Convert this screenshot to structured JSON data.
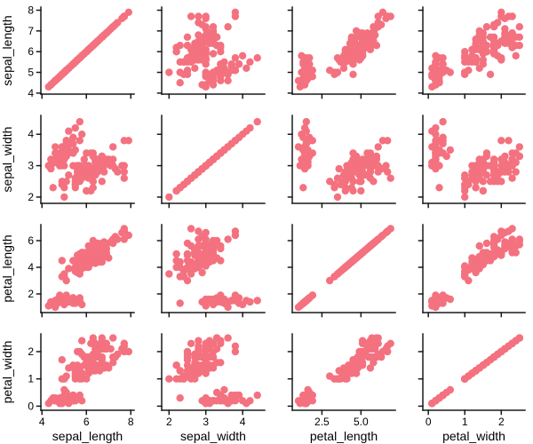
{
  "figure": {
    "background": "#ffffff"
  },
  "chart_data": {
    "type": "scatter",
    "subtype": "pairplot-scatter-matrix",
    "title": "",
    "legend": "none",
    "grid": "off",
    "marker_color": "#F4717F",
    "spine_color": "#1a1a1a",
    "variables": [
      "sepal_length",
      "sepal_width",
      "petal_length",
      "petal_width"
    ],
    "axes": {
      "sepal_length": {
        "label": "sepal_length",
        "range": [
          3.95,
          8.15
        ],
        "y_ticks": [
          "4",
          "5",
          "6",
          "7",
          "8"
        ],
        "x_ticks": [
          "4",
          "6",
          "8"
        ]
      },
      "sepal_width": {
        "label": "sepal_width",
        "range": [
          1.8,
          4.6
        ],
        "y_ticks": [
          "2",
          "3",
          "4"
        ],
        "x_ticks": [
          "2",
          "3",
          "4"
        ]
      },
      "petal_length": {
        "label": "petal_length",
        "range": [
          0.6,
          7.2
        ],
        "y_ticks": [
          "2",
          "4",
          "6"
        ],
        "x_ticks": [
          "2.5",
          "5.0"
        ]
      },
      "petal_width": {
        "label": "petal_width",
        "range": [
          -0.15,
          2.65
        ],
        "y_ticks": [
          "0",
          "1",
          "2"
        ],
        "x_ticks": [
          "0",
          "1",
          "2"
        ]
      }
    },
    "data": {
      "sepal_length": [
        5.1,
        4.9,
        4.7,
        4.6,
        5.0,
        5.4,
        4.6,
        5.0,
        4.4,
        4.9,
        5.4,
        4.8,
        4.8,
        4.3,
        5.8,
        5.7,
        5.4,
        5.1,
        5.7,
        5.1,
        5.4,
        5.1,
        4.6,
        5.1,
        4.8,
        5.0,
        5.0,
        5.2,
        5.2,
        4.7,
        4.8,
        5.4,
        5.2,
        5.5,
        4.9,
        5.0,
        5.5,
        4.9,
        4.4,
        5.1,
        5.0,
        4.5,
        4.4,
        5.0,
        5.1,
        4.8,
        5.1,
        4.6,
        5.3,
        5.0,
        7.0,
        6.4,
        6.9,
        5.5,
        6.5,
        5.7,
        6.3,
        4.9,
        6.6,
        5.2,
        5.0,
        5.9,
        6.0,
        6.1,
        5.6,
        6.7,
        5.6,
        5.8,
        6.2,
        5.6,
        5.9,
        6.1,
        6.3,
        6.1,
        6.4,
        6.6,
        6.8,
        6.7,
        6.0,
        5.7,
        5.5,
        5.5,
        5.8,
        6.0,
        5.4,
        6.0,
        6.7,
        6.3,
        5.6,
        5.5,
        5.5,
        6.1,
        5.8,
        5.0,
        5.6,
        5.7,
        5.7,
        6.2,
        5.1,
        5.7,
        6.3,
        5.8,
        7.1,
        6.3,
        6.5,
        7.6,
        4.9,
        7.3,
        6.7,
        7.2,
        6.5,
        6.4,
        6.8,
        5.7,
        5.8,
        6.4,
        6.5,
        7.7,
        7.7,
        6.0,
        6.9,
        5.6,
        7.7,
        6.3,
        6.7,
        7.2,
        6.2,
        6.1,
        6.4,
        7.2,
        7.4,
        7.9,
        6.4,
        6.3,
        6.1,
        7.7,
        6.3,
        6.4,
        6.0,
        6.9,
        6.7,
        6.9,
        5.8,
        6.8,
        6.7,
        6.7,
        6.3,
        6.5,
        6.2,
        5.9
      ],
      "sepal_width": [
        3.5,
        3.0,
        3.2,
        3.1,
        3.6,
        3.9,
        3.4,
        3.4,
        2.9,
        3.1,
        3.7,
        3.4,
        3.0,
        3.0,
        4.0,
        4.4,
        3.9,
        3.5,
        3.8,
        3.8,
        3.4,
        3.7,
        3.6,
        3.3,
        3.4,
        3.0,
        3.4,
        3.5,
        3.4,
        3.2,
        3.1,
        3.4,
        4.1,
        4.2,
        3.1,
        3.2,
        3.5,
        3.6,
        3.0,
        3.4,
        3.5,
        2.3,
        3.2,
        3.5,
        3.8,
        3.0,
        3.8,
        3.2,
        3.7,
        3.3,
        3.2,
        3.2,
        3.1,
        2.3,
        2.8,
        2.8,
        3.3,
        2.4,
        2.9,
        2.7,
        2.0,
        3.0,
        2.2,
        2.9,
        2.9,
        3.1,
        3.0,
        2.7,
        2.2,
        2.5,
        3.2,
        2.8,
        2.5,
        2.8,
        2.9,
        3.0,
        2.8,
        3.0,
        2.9,
        2.6,
        2.4,
        2.4,
        2.7,
        2.7,
        3.0,
        3.4,
        3.1,
        2.3,
        3.0,
        2.5,
        2.6,
        3.0,
        2.6,
        2.3,
        2.7,
        3.0,
        2.9,
        2.9,
        2.5,
        2.8,
        3.3,
        2.7,
        3.0,
        2.9,
        3.0,
        3.0,
        2.5,
        2.9,
        2.5,
        3.6,
        3.2,
        2.7,
        3.0,
        2.5,
        2.8,
        3.2,
        3.0,
        3.8,
        2.6,
        2.2,
        3.2,
        2.8,
        2.8,
        2.7,
        3.3,
        3.2,
        2.8,
        3.0,
        2.8,
        3.0,
        2.8,
        3.8,
        2.8,
        2.8,
        2.6,
        3.0,
        3.4,
        3.1,
        3.0,
        3.1,
        3.1,
        3.1,
        2.7,
        3.2,
        3.3,
        3.0,
        2.5,
        3.0,
        3.4,
        3.0
      ],
      "petal_length": [
        1.4,
        1.4,
        1.3,
        1.5,
        1.4,
        1.7,
        1.4,
        1.5,
        1.4,
        1.5,
        1.5,
        1.6,
        1.4,
        1.1,
        1.2,
        1.5,
        1.3,
        1.4,
        1.7,
        1.5,
        1.7,
        1.5,
        1.0,
        1.7,
        1.9,
        1.6,
        1.6,
        1.5,
        1.4,
        1.6,
        1.6,
        1.5,
        1.5,
        1.4,
        1.5,
        1.2,
        1.3,
        1.4,
        1.3,
        1.5,
        1.3,
        1.3,
        1.3,
        1.6,
        1.9,
        1.4,
        1.6,
        1.4,
        1.5,
        1.4,
        4.7,
        4.5,
        4.9,
        4.0,
        4.6,
        4.5,
        4.7,
        3.3,
        4.6,
        3.9,
        3.5,
        4.2,
        4.0,
        4.7,
        3.6,
        4.4,
        4.5,
        4.1,
        4.5,
        3.9,
        4.8,
        4.0,
        4.9,
        4.7,
        4.3,
        4.4,
        4.8,
        5.0,
        4.5,
        3.5,
        3.8,
        3.7,
        3.9,
        5.1,
        4.5,
        4.5,
        4.7,
        4.4,
        4.1,
        4.0,
        4.4,
        4.6,
        4.0,
        3.3,
        4.2,
        4.2,
        4.2,
        4.3,
        3.0,
        4.1,
        6.0,
        5.1,
        5.9,
        5.6,
        5.8,
        6.6,
        4.5,
        6.3,
        5.8,
        6.1,
        5.1,
        5.3,
        5.5,
        5.0,
        5.1,
        5.3,
        5.5,
        6.7,
        6.9,
        5.0,
        5.7,
        4.9,
        6.7,
        4.9,
        5.7,
        6.0,
        4.8,
        4.9,
        5.6,
        5.8,
        6.1,
        6.4,
        5.6,
        5.1,
        5.6,
        6.1,
        5.6,
        5.5,
        4.8,
        5.4,
        5.6,
        5.1,
        5.1,
        5.9,
        5.7,
        5.2,
        5.0,
        5.2,
        5.4,
        5.1
      ],
      "petal_width": [
        0.2,
        0.2,
        0.2,
        0.2,
        0.2,
        0.4,
        0.3,
        0.2,
        0.2,
        0.1,
        0.2,
        0.2,
        0.1,
        0.1,
        0.2,
        0.4,
        0.4,
        0.3,
        0.3,
        0.3,
        0.2,
        0.4,
        0.2,
        0.5,
        0.2,
        0.2,
        0.4,
        0.2,
        0.2,
        0.2,
        0.2,
        0.4,
        0.1,
        0.2,
        0.2,
        0.2,
        0.2,
        0.1,
        0.2,
        0.2,
        0.3,
        0.3,
        0.2,
        0.6,
        0.4,
        0.3,
        0.2,
        0.2,
        0.2,
        0.2,
        1.4,
        1.5,
        1.5,
        1.3,
        1.5,
        1.3,
        1.6,
        1.0,
        1.3,
        1.4,
        1.0,
        1.5,
        1.0,
        1.4,
        1.3,
        1.4,
        1.5,
        1.0,
        1.5,
        1.1,
        1.8,
        1.3,
        1.5,
        1.2,
        1.3,
        1.4,
        1.4,
        1.7,
        1.5,
        1.0,
        1.1,
        1.0,
        1.2,
        1.6,
        1.5,
        1.6,
        1.5,
        1.3,
        1.3,
        1.3,
        1.2,
        1.4,
        1.2,
        1.0,
        1.3,
        1.2,
        1.3,
        1.3,
        1.1,
        1.3,
        2.5,
        1.9,
        2.1,
        1.8,
        2.2,
        2.1,
        1.7,
        1.8,
        1.8,
        2.5,
        2.0,
        1.9,
        2.1,
        2.0,
        2.4,
        2.3,
        1.8,
        2.2,
        2.3,
        1.5,
        2.3,
        2.0,
        2.0,
        1.8,
        2.1,
        1.8,
        1.8,
        1.8,
        2.1,
        1.6,
        1.9,
        2.0,
        2.2,
        1.5,
        1.4,
        2.3,
        2.4,
        1.8,
        1.8,
        2.1,
        2.4,
        2.3,
        1.9,
        2.3,
        2.5,
        2.3,
        1.9,
        2.0,
        2.3,
        1.8
      ]
    }
  }
}
